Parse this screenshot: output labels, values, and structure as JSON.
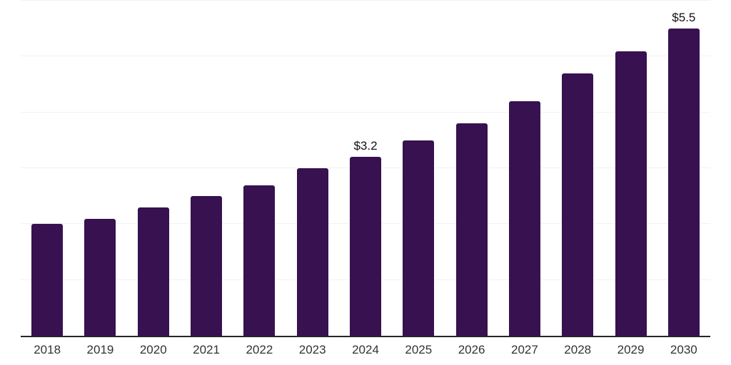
{
  "chart": {
    "background_color": "#ffffff",
    "bar_color": "#371150",
    "grid_color": "#f2f2f2",
    "axis_line_color": "#262626",
    "tick_label_color": "#333333",
    "data_label_color": "#111111"
  },
  "chart_data": {
    "type": "bar",
    "title": "",
    "xlabel": "",
    "ylabel": "",
    "categories": [
      "2018",
      "2019",
      "2020",
      "2021",
      "2022",
      "2023",
      "2024",
      "2025",
      "2026",
      "2027",
      "2028",
      "2029",
      "2030"
    ],
    "values": [
      2.0,
      2.1,
      2.3,
      2.5,
      2.7,
      3.0,
      3.2,
      3.5,
      3.8,
      4.2,
      4.7,
      5.1,
      5.5
    ],
    "data_labels": [
      null,
      null,
      null,
      null,
      null,
      null,
      "$3.2",
      null,
      null,
      null,
      null,
      null,
      "$5.5"
    ],
    "ylim": [
      0,
      6
    ],
    "gridline_values": [
      1,
      2,
      3,
      4,
      5,
      6
    ],
    "grid": true,
    "legend_position": "none"
  }
}
